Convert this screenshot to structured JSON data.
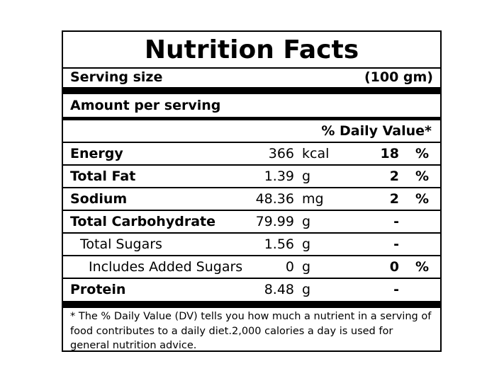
{
  "label": {
    "title": "Nutrition Facts",
    "serving_size_label": "Serving size",
    "serving_size_value": "(100 gm)",
    "amount_per_serving": "Amount per serving",
    "daily_value_header": "% Daily Value*",
    "rows": [
      {
        "name": "Energy",
        "amount": 366,
        "unit": "kcal",
        "dv": 18,
        "dv_unit": "%"
      },
      {
        "name": "Total Fat",
        "amount": 1.39,
        "unit": "g",
        "dv": 2,
        "dv_unit": "%"
      },
      {
        "name": "Sodium",
        "amount": 48.36,
        "unit": "mg",
        "dv": 2,
        "dv_unit": "%"
      },
      {
        "name": "Total Carbohydrate",
        "amount": 79.99,
        "unit": "g",
        "dv": "-"
      },
      {
        "name": "Total Sugars",
        "amount": 1.56,
        "unit": "g",
        "dv": "-"
      },
      {
        "name": "Includes Added Sugars",
        "amount": 0,
        "unit": "g",
        "dv": 0,
        "dv_unit": "%"
      },
      {
        "name": "Protein",
        "amount": 8.48,
        "unit": "g",
        "dv": "-"
      }
    ],
    "footnote": "* The % Daily Value (DV) tells you how much a nutrient in a serving of food contributes to a daily diet.2,000 calories a day is used for general nutrition advice."
  }
}
